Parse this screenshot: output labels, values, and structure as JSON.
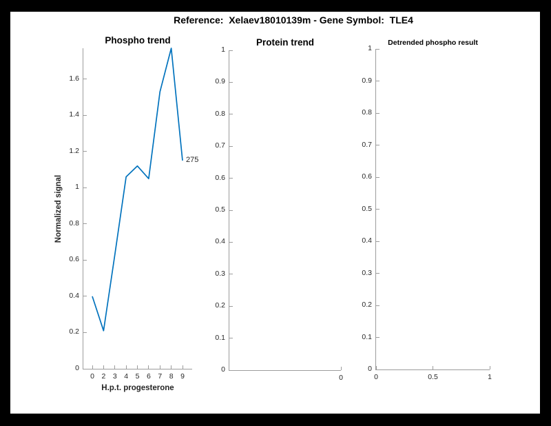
{
  "figure": {
    "title": "Reference:  Xelaev18010139m - Gene Symbol:  TLE4",
    "background": "#ffffff",
    "frame_color": "#000000"
  },
  "colors": {
    "line": "#0072BD",
    "axis": "#9b9b9b",
    "tick_label": "#262626",
    "title_text": "#000000"
  },
  "chart_data": [
    {
      "type": "line",
      "title": "Phospho trend",
      "xlabel": "H.p.t. progesterone",
      "ylabel": "Normalized signal",
      "x_tick_labels": [
        "0",
        "2",
        "3",
        "4",
        "5",
        "6",
        "7",
        "8",
        "9"
      ],
      "x": [
        0,
        2,
        3,
        4,
        5,
        6,
        7,
        8,
        9
      ],
      "values": [
        0.4,
        0.21,
        0.63,
        1.06,
        1.12,
        1.05,
        1.53,
        1.77,
        1.15
      ],
      "end_label": "275",
      "y_tick_values": [
        0,
        0.2,
        0.4,
        0.6,
        0.8,
        1,
        1.2,
        1.4,
        1.6
      ],
      "y_tick_labels": [
        "0",
        "0.2",
        "0.4",
        "0.6",
        "0.8",
        "1",
        "1.2",
        "1.4",
        "1.6"
      ],
      "ylim": [
        0,
        1.77
      ],
      "line_color": "#0072BD",
      "grid": false,
      "legend": null
    },
    {
      "type": "line",
      "title": "Protein trend",
      "xlabel": "",
      "ylabel": "",
      "x_tick_labels": [
        "0"
      ],
      "x": [],
      "values": [],
      "end_label": "",
      "y_tick_values": [
        0,
        0.1,
        0.2,
        0.3,
        0.4,
        0.5,
        0.6,
        0.7,
        0.8,
        0.9,
        1
      ],
      "y_tick_labels": [
        "0",
        "0.1",
        "0.2",
        "0.3",
        "0.4",
        "0.5",
        "0.6",
        "0.7",
        "0.8",
        "0.9",
        "1"
      ],
      "ylim": [
        0,
        1
      ],
      "line_color": "#0072BD",
      "grid": false,
      "legend": null
    },
    {
      "type": "line",
      "title": "Detrended phospho result",
      "xlabel": "",
      "ylabel": "",
      "x_tick_labels": [
        "0",
        "0.5",
        "1"
      ],
      "x": [],
      "values": [],
      "end_label": "",
      "y_tick_values": [
        0,
        0.1,
        0.2,
        0.3,
        0.4,
        0.5,
        0.6,
        0.7,
        0.8,
        0.9,
        1
      ],
      "y_tick_labels": [
        "0",
        "0.1",
        "0.2",
        "0.3",
        "0.4",
        "0.5",
        "0.6",
        "0.7",
        "0.8",
        "0.9",
        "1"
      ],
      "ylim": [
        0,
        1
      ],
      "xlim": [
        0,
        1
      ],
      "line_color": "#0072BD",
      "grid": false,
      "legend": null
    }
  ]
}
